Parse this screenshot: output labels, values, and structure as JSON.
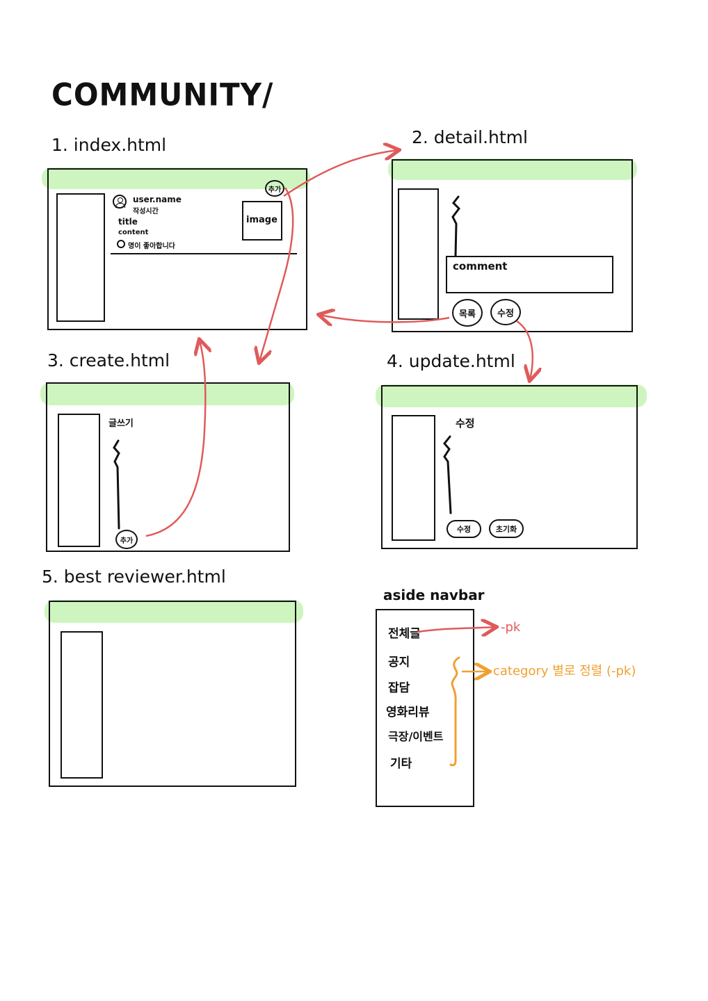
{
  "title": "COMMUNITY/",
  "pages": {
    "index": {
      "label": "1. index.html",
      "user_name": "user.name",
      "time": "작성시간",
      "title": "title",
      "content": "content",
      "likes": "명이 좋아합니다",
      "image": "image",
      "add_button": "추가"
    },
    "detail": {
      "label": "2. detail.html",
      "comment": "comment",
      "list_button": "목록",
      "edit_button": "수정"
    },
    "create": {
      "label": "3. create.html",
      "heading": "글쓰기",
      "add_button": "추가"
    },
    "update": {
      "label": "4. update.html",
      "heading": "수정",
      "edit_button": "수정",
      "reset_button": "초기화"
    },
    "best": {
      "label": "5. best reviewer.html"
    }
  },
  "aside": {
    "label": "aside navbar",
    "items": [
      "전체글",
      "공지",
      "잡담",
      "영화리뷰",
      "극장/이벤트",
      "기타"
    ],
    "note_all": "-pk",
    "note_category": "category 별로 정렬 (-pk)"
  },
  "colors": {
    "arrow_red": "#e05a5a",
    "note_orange": "#f0a030",
    "highlight_green": "#c6f3b4"
  }
}
